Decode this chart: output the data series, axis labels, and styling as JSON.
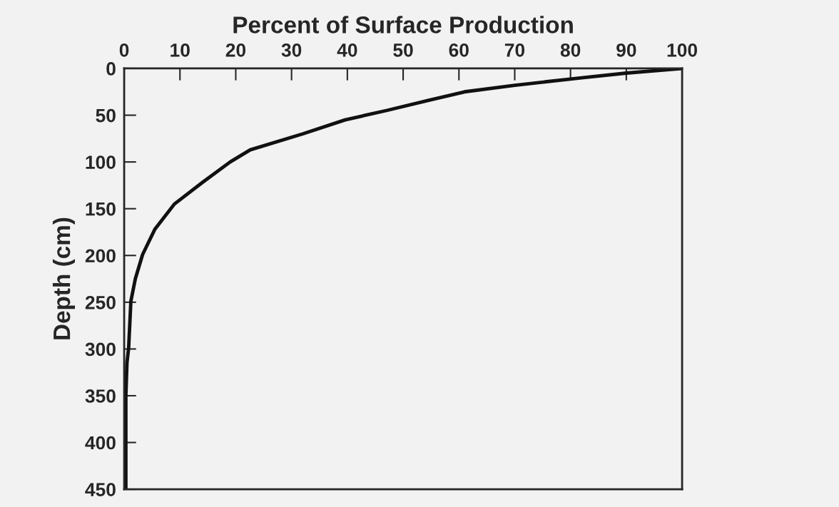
{
  "chart_data": {
    "type": "line",
    "xlabel": "Percent of Surface Production",
    "ylabel": "Depth (cm)",
    "series": [
      {
        "color": "#111111",
        "x": [
          100,
          90,
          82,
          70,
          61,
          54.6,
          47,
          39.6,
          32,
          22.6,
          19,
          14,
          9,
          5.5,
          3.3,
          2,
          1.2,
          0.8,
          0.5,
          0.3,
          0.3
        ],
        "values": [
          0,
          5,
          10,
          18,
          25,
          34,
          45,
          55,
          70,
          87,
          100,
          122,
          145,
          172,
          199,
          225,
          249,
          299,
          315,
          350,
          450
        ]
      }
    ],
    "xlim": [
      0,
      100
    ],
    "xticks": [
      0,
      10,
      20,
      30,
      40,
      50,
      60,
      70,
      80,
      90,
      100
    ],
    "ylim": [
      450,
      0
    ],
    "yticks": [
      0,
      50,
      100,
      150,
      200,
      250,
      300,
      350,
      400,
      450
    ],
    "grid": false,
    "legend": false,
    "marker": "none",
    "line_style": "solid"
  }
}
